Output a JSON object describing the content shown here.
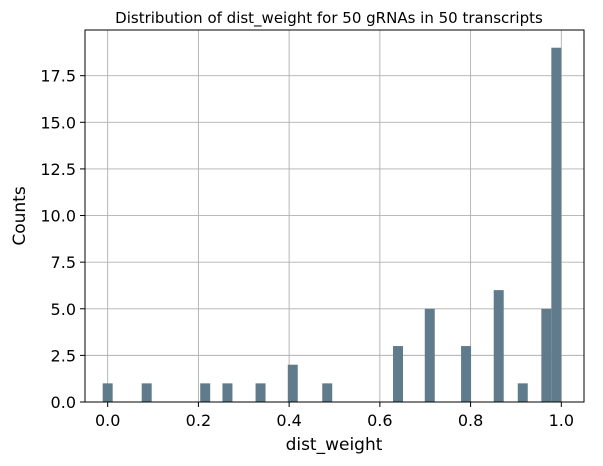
{
  "chart_data": {
    "type": "bar",
    "title": "Distribution of dist_weight for 50 gRNAs in 50 transcripts",
    "xlabel": "dist_weight",
    "ylabel": "Counts",
    "xlim": [
      -0.05,
      1.05
    ],
    "ylim": [
      0,
      19.95
    ],
    "grid": true,
    "bar_color": "#607b8b",
    "bin_width": 0.022,
    "x_ticks": [
      0.0,
      0.2,
      0.4,
      0.6,
      0.8,
      1.0
    ],
    "x_tick_labels": [
      "0.0",
      "0.2",
      "0.4",
      "0.6",
      "0.8",
      "1.0"
    ],
    "y_ticks": [
      0.0,
      2.5,
      5.0,
      7.5,
      10.0,
      12.5,
      15.0,
      17.5
    ],
    "y_tick_labels": [
      "0.0",
      "2.5",
      "5.0",
      "7.5",
      "10.0",
      "12.5",
      "15.0",
      "17.5"
    ],
    "bins": [
      {
        "x": 0.0,
        "count": 1
      },
      {
        "x": 0.086,
        "count": 1
      },
      {
        "x": 0.215,
        "count": 1
      },
      {
        "x": 0.264,
        "count": 1
      },
      {
        "x": 0.337,
        "count": 1
      },
      {
        "x": 0.408,
        "count": 2
      },
      {
        "x": 0.484,
        "count": 1
      },
      {
        "x": 0.64,
        "count": 3
      },
      {
        "x": 0.71,
        "count": 5
      },
      {
        "x": 0.79,
        "count": 3
      },
      {
        "x": 0.862,
        "count": 6
      },
      {
        "x": 0.915,
        "count": 1
      },
      {
        "x": 0.967,
        "count": 5
      },
      {
        "x": 0.989,
        "count": 19
      }
    ]
  }
}
